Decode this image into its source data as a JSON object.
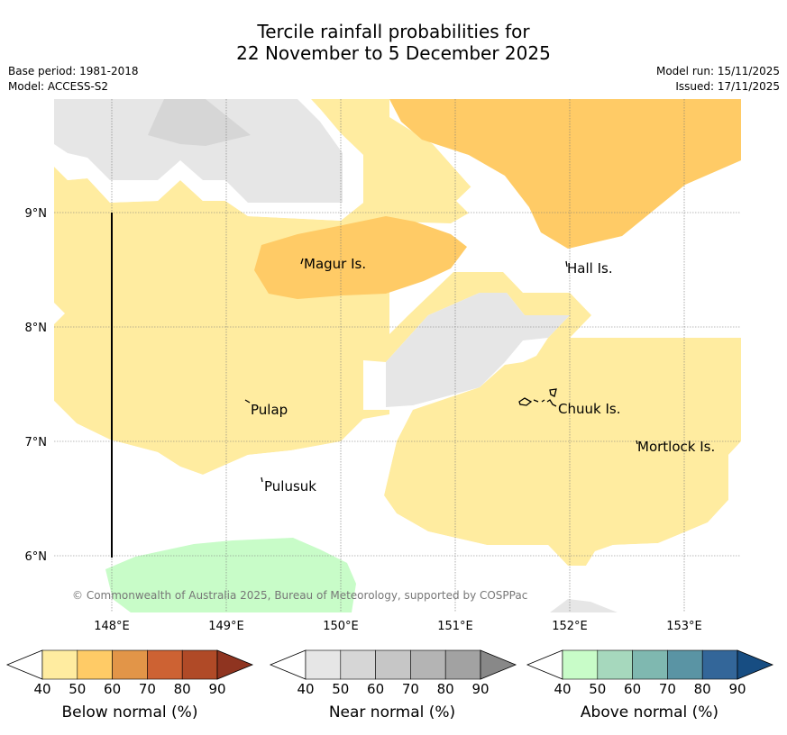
{
  "title_line1": "Tercile rainfall probabilities for",
  "title_line2": "22 November to 5 December 2025",
  "base_period": "Base period: 1981-2018",
  "model": "Model: ACCESS-S2",
  "model_run": "Model run: 15/11/2025",
  "issued": "Issued: 17/11/2025",
  "copyright": "© Commonwealth of Australia 2025, Bureau of Meteorology, supported by COSPPac",
  "lon_labels": [
    "148°E",
    "149°E",
    "150°E",
    "151°E",
    "152°E",
    "153°E"
  ],
  "lat_labels": [
    "9°N",
    "8°N",
    "7°N",
    "6°N"
  ],
  "places": {
    "magur": "Magur Is.",
    "hall": "Hall Is.",
    "pulap": "Pulap",
    "chuuk": "Chuuk Is.",
    "mortlock": "Mortlock Is.",
    "pulusuk": "Pulusuk"
  },
  "legend": {
    "ticks": [
      "40",
      "50",
      "60",
      "70",
      "80",
      "90"
    ],
    "below": {
      "title": "Below normal (%)",
      "colors": [
        "#ffeca0",
        "#ffcb66",
        "#e29548",
        "#cd6233",
        "#b04a27",
        "#8f3420"
      ]
    },
    "near": {
      "title": "Near normal (%)",
      "colors": [
        "#e6e6e6",
        "#d6d6d6",
        "#c6c6c6",
        "#b4b4b4",
        "#a2a2a2",
        "#888888"
      ]
    },
    "above": {
      "title": "Above normal (%)",
      "colors": [
        "#c8fcc8",
        "#a6d8bd",
        "#7fb8b0",
        "#5a94a4",
        "#336699",
        "#174d82"
      ]
    }
  }
}
